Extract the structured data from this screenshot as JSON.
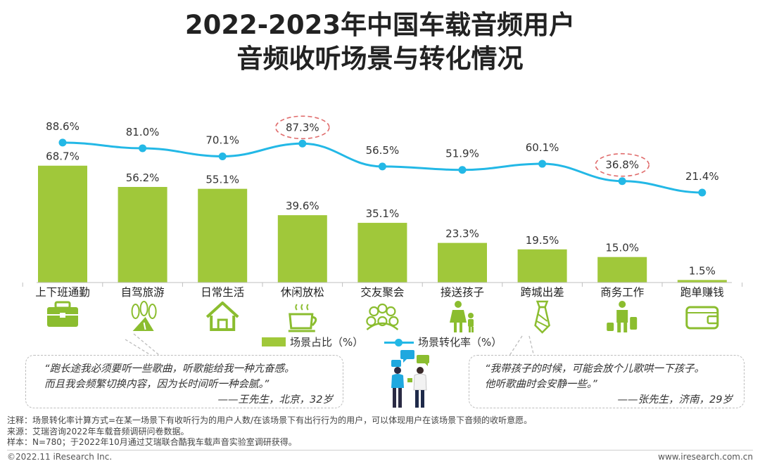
{
  "title": {
    "line1": "2022-2023年中国车载音频用户",
    "line2": "音频收听场景与转化情况"
  },
  "chart_data": {
    "type": "bar",
    "title": "2022-2023年中国车载音频用户音频收听场景与转化情况",
    "categories": [
      "上下班通勤",
      "自驾旅游",
      "日常生活",
      "休闲放松",
      "交友聚会",
      "接送孩子",
      "跨城出差",
      "商务工作",
      "跑单赚钱"
    ],
    "category_icons": [
      "briefcase-icon",
      "trees-road-icon",
      "house-icon",
      "coffee-cup-icon",
      "people-group-icon",
      "parent-child-icon",
      "necktie-icon",
      "luggage-traveler-icon",
      "wallet-icon"
    ],
    "series": [
      {
        "name": "场景占比（%）",
        "type": "bar",
        "color": "#a0c83a",
        "values": [
          68.7,
          56.2,
          55.1,
          39.6,
          35.1,
          23.3,
          19.5,
          15.0,
          1.5
        ],
        "labels": [
          "68.7%",
          "56.2%",
          "55.1%",
          "39.6%",
          "35.1%",
          "23.3%",
          "19.5%",
          "15.0%",
          "1.5%"
        ]
      },
      {
        "name": "场景转化率（%）",
        "type": "line",
        "color": "#23b8e6",
        "values": [
          88.6,
          81.0,
          70.1,
          87.3,
          56.5,
          51.9,
          60.1,
          36.8,
          21.4
        ],
        "labels": [
          "88.6%",
          "81.0%",
          "70.1%",
          "87.3%",
          "56.5%",
          "51.9%",
          "60.1%",
          "36.8%",
          "21.4%"
        ]
      }
    ],
    "highlighted_points": [
      3,
      7
    ],
    "highlight_color": "#e06c6c",
    "legend_position": "bottom",
    "grid": false
  },
  "legend": {
    "bar_label": "场景占比（%）",
    "line_label": "场景转化率（%）"
  },
  "quotes": {
    "left": {
      "line1": "“跑长途我必须要听一些歌曲，听歌能给我一种亢奋感。",
      "line2": "而且我会频繁切换内容，因为长时间听一种会腻。”",
      "signature": "——王先生，北京，32岁"
    },
    "right": {
      "line1": "“我带孩子的时候，可能会放个儿歌哄一下孩子。",
      "line2": "他听歌曲时会安静一些。”",
      "signature": "——张先生，济南，29岁"
    }
  },
  "notes": {
    "note": "注释：场景转化率计算方式=在某一场景下有收听行为的用户人数/在该场景下有出行行为的用户，可以体现用户在该场景下音频的收听意愿。",
    "source": "来源：艾瑞咨询2022年车载音频调研问卷数据。",
    "sample": "样本：N=780；于2022年10月通过艾瑞联合酷我车载声音实验室调研获得。"
  },
  "footer": {
    "copyright": "©2022.11 iResearch Inc.",
    "website": "www.iresearch.com.cn"
  },
  "colors": {
    "bar": "#a0c83a",
    "line": "#23b8e6",
    "icon": "#8bbd2f"
  }
}
